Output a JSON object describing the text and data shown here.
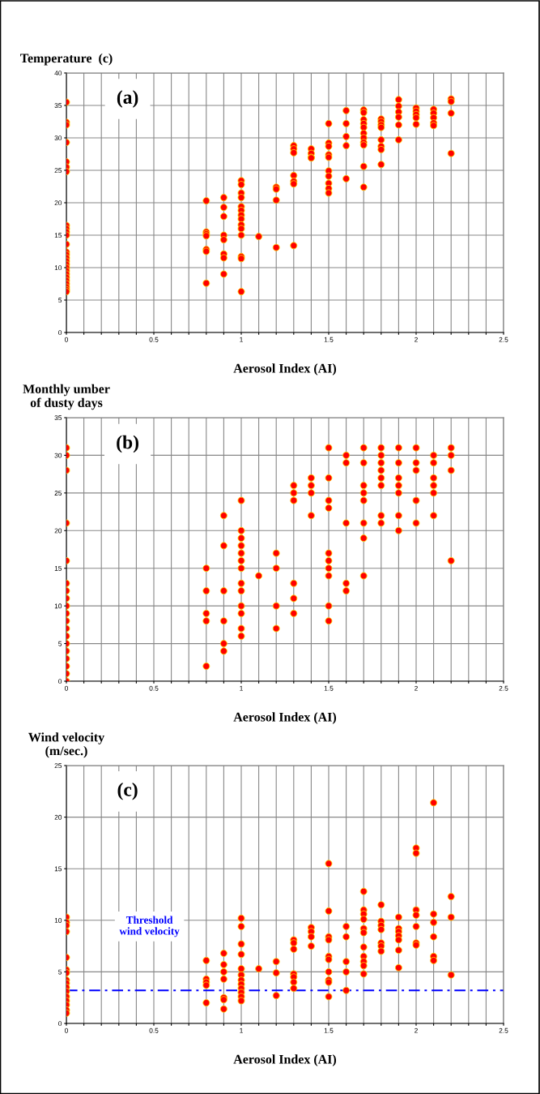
{
  "chart_data": [
    {
      "type": "scatter",
      "ylabel": "Temperature  (c)",
      "xlabel": "Aerosol Index (AI)",
      "annotations": [
        "(a)"
      ],
      "marker": "circle",
      "grid": true,
      "xlim": [
        0,
        2.5
      ],
      "ylim": [
        0,
        40
      ],
      "xticks": [
        0,
        {
          "value": 0.1,
          "label": null
        },
        {
          "value": 0.2,
          "label": null
        },
        {
          "value": 0.3,
          "label": null
        },
        {
          "value": 0.4,
          "label": null
        },
        0.5,
        {
          "value": 0.6,
          "label": null
        },
        {
          "value": 0.7,
          "label": null
        },
        {
          "value": 0.8,
          "label": null
        },
        {
          "value": 0.9,
          "label": null
        },
        1,
        {
          "value": 1.1,
          "label": null
        },
        {
          "value": 1.2,
          "label": null
        },
        {
          "value": 1.3,
          "label": null
        },
        {
          "value": 1.4,
          "label": null
        },
        1.5,
        {
          "value": 1.6,
          "label": null
        },
        {
          "value": 1.7,
          "label": null
        },
        {
          "value": 1.8,
          "label": null
        },
        {
          "value": 1.9,
          "label": null
        },
        2,
        {
          "value": 2.1,
          "label": null
        },
        {
          "value": 2.2,
          "label": null
        },
        {
          "value": 2.3,
          "label": null
        },
        {
          "value": 2.4,
          "label": null
        },
        2.5
      ],
      "yticks": [
        0,
        5,
        10,
        15,
        20,
        25,
        30,
        35,
        40
      ],
      "series": [
        {
          "color": "#ff0000",
          "x": [
            0,
            0,
            0,
            0,
            0,
            0,
            0,
            0,
            0,
            0,
            0,
            0,
            0,
            0,
            0,
            0,
            0,
            0,
            0,
            0,
            0,
            0,
            0,
            0,
            0,
            0,
            0.8,
            0.8,
            0.8,
            0.8,
            0.8,
            0.8,
            0.8,
            0.9,
            0.9,
            0.9,
            0.9,
            0.9,
            0.9,
            0.9,
            0.9,
            1,
            1,
            1,
            1,
            1,
            1,
            1,
            1,
            1,
            1,
            1,
            1,
            1,
            1,
            1.1,
            1.2,
            1.2,
            1.2,
            1.2,
            1.3,
            1.3,
            1.3,
            1.3,
            1.3,
            1.3,
            1.3,
            1.4,
            1.4,
            1.4,
            1.4,
            1.5,
            1.5,
            1.5,
            1.5,
            1.5,
            1.5,
            1.5,
            1.5,
            1.5,
            1.5,
            1.6,
            1.6,
            1.6,
            1.6,
            1.6,
            1.7,
            1.7,
            1.7,
            1.7,
            1.7,
            1.7,
            1.7,
            1.7,
            1.7,
            1.7,
            1.7,
            1.8,
            1.8,
            1.8,
            1.8,
            1.8,
            1.8,
            1.8,
            1.8,
            1.9,
            1.9,
            1.9,
            1.9,
            1.9,
            1.9,
            2,
            2,
            2,
            2,
            2,
            2.1,
            2.1,
            2.1,
            2.1,
            2.1,
            2.2,
            2.2,
            2.2,
            2.2
          ],
          "values": [
            35.5,
            32.4,
            32.0,
            29.3,
            26.3,
            25.5,
            24.8,
            16.5,
            16.0,
            15.5,
            15.0,
            13.6,
            12.4,
            12.0,
            11.5,
            11.0,
            10.5,
            10.0,
            9.5,
            9.0,
            8.5,
            8.0,
            7.5,
            7.0,
            6.6,
            6.3,
            20.3,
            15.5,
            15.2,
            14.9,
            12.8,
            12.5,
            7.6,
            20.8,
            19.3,
            17.9,
            15.0,
            14.3,
            12.1,
            11.5,
            9.0,
            23.4,
            22.8,
            21.5,
            20.8,
            19.4,
            18.8,
            18.1,
            17.5,
            16.6,
            16.0,
            15.0,
            11.7,
            11.4,
            6.3,
            14.8,
            22.4,
            22.1,
            20.4,
            13.1,
            28.8,
            28.3,
            27.7,
            24.2,
            23.3,
            22.9,
            13.4,
            28.3,
            27.6,
            27.0,
            26.9,
            32.2,
            29.2,
            28.7,
            27.4,
            27.0,
            24.9,
            24.1,
            23.0,
            22.2,
            21.5,
            34.2,
            32.2,
            30.2,
            28.8,
            23.7,
            34.3,
            33.9,
            32.8,
            32.2,
            31.6,
            30.7,
            30.0,
            29.3,
            28.9,
            25.6,
            22.4,
            32.9,
            32.5,
            32.0,
            31.6,
            29.7,
            28.7,
            28.2,
            25.9,
            35.9,
            34.9,
            34.0,
            33.2,
            32.0,
            29.7,
            34.6,
            34.1,
            33.6,
            33.1,
            32.1,
            34.4,
            33.8,
            33.1,
            32.3,
            31.9,
            36.0,
            35.6,
            33.8,
            27.6
          ]
        }
      ]
    },
    {
      "type": "scatter",
      "ylabel": "Monthly umber\nof dusty days",
      "xlabel": "Aerosol Index (AI)",
      "annotations": [
        "(b)"
      ],
      "marker": "circle",
      "grid": true,
      "xlim": [
        0,
        2.5
      ],
      "ylim": [
        0,
        35
      ],
      "xticks": [
        0,
        {
          "value": 0.1,
          "label": null
        },
        {
          "value": 0.2,
          "label": null
        },
        {
          "value": 0.3,
          "label": null
        },
        {
          "value": 0.4,
          "label": null
        },
        0.5,
        {
          "value": 0.6,
          "label": null
        },
        {
          "value": 0.7,
          "label": null
        },
        {
          "value": 0.8,
          "label": null
        },
        {
          "value": 0.9,
          "label": null
        },
        1,
        {
          "value": 1.1,
          "label": null
        },
        {
          "value": 1.2,
          "label": null
        },
        {
          "value": 1.3,
          "label": null
        },
        {
          "value": 1.4,
          "label": null
        },
        1.5,
        {
          "value": 1.6,
          "label": null
        },
        {
          "value": 1.7,
          "label": null
        },
        {
          "value": 1.8,
          "label": null
        },
        {
          "value": 1.9,
          "label": null
        },
        2,
        {
          "value": 2.1,
          "label": null
        },
        {
          "value": 2.2,
          "label": null
        },
        {
          "value": 2.3,
          "label": null
        },
        {
          "value": 2.4,
          "label": null
        },
        2.5
      ],
      "yticks": [
        0,
        5,
        10,
        15,
        20,
        25,
        30,
        35
      ],
      "series": [
        {
          "color": "#ff0000",
          "x": [
            0,
            0,
            0,
            0,
            0,
            0,
            0,
            0,
            0,
            0,
            0,
            0,
            0,
            0,
            0,
            0,
            0,
            0,
            0,
            0.8,
            0.8,
            0.8,
            0.8,
            0.8,
            0.9,
            0.9,
            0.9,
            0.9,
            0.9,
            0.9,
            1,
            1,
            1,
            1,
            1,
            1,
            1,
            1,
            1,
            1,
            1,
            1,
            1,
            1.1,
            1.2,
            1.2,
            1.2,
            1.2,
            1.3,
            1.3,
            1.3,
            1.3,
            1.3,
            1.3,
            1.4,
            1.4,
            1.4,
            1.4,
            1.5,
            1.5,
            1.5,
            1.5,
            1.5,
            1.5,
            1.5,
            1.5,
            1.5,
            1.5,
            1.6,
            1.6,
            1.6,
            1.6,
            1.6,
            1.7,
            1.7,
            1.7,
            1.7,
            1.7,
            1.7,
            1.7,
            1.7,
            1.8,
            1.8,
            1.8,
            1.8,
            1.8,
            1.8,
            1.8,
            1.8,
            1.9,
            1.9,
            1.9,
            1.9,
            1.9,
            1.9,
            1.9,
            2,
            2,
            2,
            2,
            2,
            2.1,
            2.1,
            2.1,
            2.1,
            2.1,
            2.1,
            2.2,
            2.2,
            2.2,
            2.2
          ],
          "values": [
            31,
            30,
            28,
            21,
            16,
            13,
            12,
            11,
            10,
            9,
            8,
            7,
            6,
            5,
            4,
            3,
            2,
            1,
            0,
            15,
            12,
            9,
            8,
            2,
            22,
            18,
            12,
            8,
            5,
            4,
            24,
            20,
            19,
            18,
            17,
            16,
            15,
            13,
            12,
            10,
            9,
            7,
            6,
            14,
            17,
            15,
            10,
            7,
            26,
            25,
            24,
            13,
            11,
            9,
            27,
            26,
            25,
            22,
            31,
            27,
            24,
            23,
            17,
            16,
            15,
            14,
            10,
            8,
            30,
            29,
            21,
            13,
            12,
            31,
            29,
            26,
            25,
            24,
            21,
            19,
            14,
            31,
            30,
            29,
            28,
            27,
            26,
            22,
            21,
            31,
            29,
            27,
            26,
            25,
            22,
            20,
            31,
            29,
            28,
            24,
            21,
            30,
            29,
            27,
            26,
            25,
            22,
            31,
            30,
            28,
            16
          ]
        }
      ]
    },
    {
      "type": "scatter",
      "ylabel": "Wind velocity\n(m/sec.)",
      "xlabel": "Aerosol Index (AI)",
      "annotations": [
        "(c)"
      ],
      "marker": "circle",
      "grid": true,
      "xlim": [
        0,
        2.5
      ],
      "ylim": [
        0,
        25
      ],
      "xticks": [
        0,
        {
          "value": 0.1,
          "label": null
        },
        {
          "value": 0.2,
          "label": null
        },
        {
          "value": 0.3,
          "label": null
        },
        {
          "value": 0.4,
          "label": null
        },
        0.5,
        {
          "value": 0.6,
          "label": null
        },
        {
          "value": 0.7,
          "label": null
        },
        {
          "value": 0.8,
          "label": null
        },
        {
          "value": 0.9,
          "label": null
        },
        1,
        {
          "value": 1.1,
          "label": null
        },
        {
          "value": 1.2,
          "label": null
        },
        {
          "value": 1.3,
          "label": null
        },
        {
          "value": 1.4,
          "label": null
        },
        1.5,
        {
          "value": 1.6,
          "label": null
        },
        {
          "value": 1.7,
          "label": null
        },
        {
          "value": 1.8,
          "label": null
        },
        {
          "value": 1.9,
          "label": null
        },
        2,
        {
          "value": 2.1,
          "label": null
        },
        {
          "value": 2.2,
          "label": null
        },
        {
          "value": 2.3,
          "label": null
        },
        {
          "value": 2.4,
          "label": null
        },
        2.5
      ],
      "yticks": [
        0,
        5,
        10,
        15,
        20,
        25
      ],
      "ref_lines": [
        {
          "axis": "y",
          "value": 3.2,
          "label": "Threshold\nwind velocity",
          "color": "#0000ff",
          "line_style": "dashed"
        }
      ],
      "series": [
        {
          "color": "#ff0000",
          "x": [
            0,
            0,
            0,
            0,
            0,
            0,
            0,
            0,
            0,
            0,
            0,
            0,
            0,
            0,
            0,
            0,
            0.8,
            0.8,
            0.8,
            0.8,
            0.8,
            0.9,
            0.9,
            0.9,
            0.9,
            0.9,
            0.9,
            0.9,
            1,
            1,
            1,
            1,
            1,
            1,
            1,
            1,
            1,
            1,
            1,
            1,
            1.1,
            1.2,
            1.2,
            1.2,
            1.3,
            1.3,
            1.3,
            1.3,
            1.3,
            1.3,
            1.3,
            1.4,
            1.4,
            1.4,
            1.4,
            1.5,
            1.5,
            1.5,
            1.5,
            1.5,
            1.5,
            1.5,
            1.5,
            1.5,
            1.5,
            1.6,
            1.6,
            1.6,
            1.6,
            1.6,
            1.7,
            1.7,
            1.7,
            1.7,
            1.7,
            1.7,
            1.7,
            1.7,
            1.7,
            1.7,
            1.7,
            1.8,
            1.8,
            1.8,
            1.8,
            1.8,
            1.8,
            1.8,
            1.9,
            1.9,
            1.9,
            1.9,
            1.9,
            1.9,
            1.9,
            2,
            2,
            2,
            2,
            2,
            2,
            2,
            2.1,
            2.1,
            2.1,
            2.1,
            2.1,
            2.1,
            2.2,
            2.2,
            2.2
          ],
          "values": [
            10.3,
            9.8,
            9.5,
            8.9,
            6.4,
            5.2,
            4.9,
            4.2,
            3.9,
            3.5,
            3.1,
            2.6,
            2.2,
            1.8,
            1.3,
            1.0,
            6.1,
            4.3,
            4.0,
            3.7,
            2.0,
            6.8,
            5.7,
            5.0,
            4.3,
            2.5,
            2.3,
            1.4,
            10.2,
            9.4,
            7.7,
            6.7,
            5.3,
            4.7,
            4.2,
            3.8,
            3.4,
            3.0,
            2.6,
            2.2,
            5.3,
            6.0,
            4.9,
            2.7,
            8.1,
            7.8,
            7.2,
            4.8,
            4.5,
            4.0,
            3.4,
            9.3,
            8.9,
            8.4,
            7.5,
            15.5,
            10.9,
            8.4,
            8.1,
            6.5,
            6.2,
            5.0,
            4.2,
            4.0,
            2.6,
            9.4,
            8.4,
            6.0,
            5.0,
            3.2,
            12.8,
            11.0,
            10.6,
            10.1,
            9.2,
            8.8,
            7.4,
            6.5,
            6.0,
            5.6,
            4.8,
            11.5,
            9.9,
            9.5,
            9.1,
            7.8,
            7.5,
            7.0,
            10.3,
            9.2,
            8.9,
            8.5,
            8.1,
            7.1,
            5.4,
            17.0,
            16.5,
            11.0,
            10.5,
            9.4,
            7.8,
            7.6,
            21.4,
            10.6,
            9.8,
            8.4,
            6.5,
            6.1,
            12.3,
            10.3,
            4.7
          ]
        }
      ]
    }
  ]
}
